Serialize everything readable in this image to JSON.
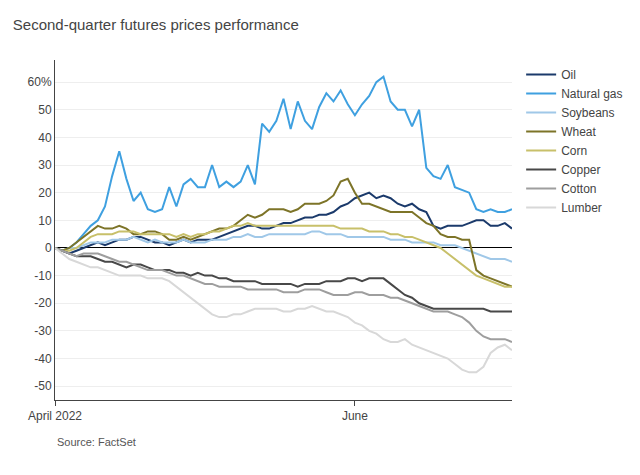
{
  "chart_data": {
    "type": "line",
    "title": "Second-quarter futures prices performance",
    "annotations": [
      "Source: FactSet"
    ],
    "categories": [
      "April 2022",
      null,
      null,
      null,
      null,
      null,
      null,
      null,
      null,
      null,
      null,
      null,
      null,
      null,
      null,
      null,
      null,
      null,
      null,
      null,
      null,
      null,
      null,
      null,
      null,
      null,
      null,
      null,
      null,
      null,
      null,
      null,
      null,
      null,
      null,
      null,
      null,
      null,
      null,
      null,
      null,
      null,
      "June",
      null,
      null,
      null,
      null,
      null,
      null,
      null,
      null,
      null,
      null,
      null,
      null,
      null,
      null,
      null,
      null,
      null,
      null,
      null,
      null,
      null,
      null
    ],
    "series": [
      {
        "name": "Oil",
        "color": "#1b3a6b",
        "values": [
          0,
          -1,
          -2,
          -1,
          0,
          1,
          2,
          1,
          2,
          3,
          3,
          4,
          4,
          3,
          2,
          2,
          1,
          2,
          3,
          2,
          3,
          3,
          3,
          4,
          5,
          6,
          7,
          8,
          8,
          7,
          7,
          8,
          9,
          9,
          10,
          11,
          11,
          12,
          12,
          13,
          15,
          16,
          18,
          19,
          20,
          18,
          19,
          18,
          16,
          15,
          16,
          14,
          13,
          8,
          7,
          8,
          8,
          8,
          9,
          10,
          10,
          8,
          8,
          9,
          7
        ]
      },
      {
        "name": "Natural gas",
        "color": "#3fa0e0",
        "values": [
          0,
          -1,
          0,
          2,
          5,
          8,
          10,
          15,
          26,
          35,
          25,
          17,
          20,
          14,
          13,
          14,
          22,
          15,
          23,
          25,
          22,
          22,
          30,
          22,
          24,
          22,
          24,
          30,
          23,
          45,
          42,
          46,
          54,
          43,
          53,
          46,
          43,
          51,
          56,
          53,
          57,
          52,
          48,
          52,
          55,
          60,
          62,
          53,
          50,
          50,
          44,
          50,
          29,
          26,
          25,
          30,
          22,
          21,
          20,
          14,
          13,
          14,
          13,
          13,
          14
        ]
      },
      {
        "name": "Soybeans",
        "color": "#a0c8e8",
        "values": [
          0,
          -1,
          0,
          0,
          1,
          2,
          2,
          2,
          3,
          3,
          3,
          4,
          3,
          2,
          3,
          2,
          2,
          2,
          3,
          2,
          2,
          2,
          3,
          3,
          3,
          4,
          4,
          5,
          4,
          4,
          5,
          5,
          5,
          5,
          5,
          5,
          6,
          6,
          5,
          5,
          5,
          4,
          4,
          4,
          4,
          4,
          4,
          3,
          3,
          3,
          2,
          2,
          2,
          2,
          1,
          1,
          1,
          0,
          -1,
          -2,
          -3,
          -4,
          -4,
          -4,
          -5
        ]
      },
      {
        "name": "Wheat",
        "color": "#7d7428",
        "values": [
          0,
          -1,
          0,
          2,
          4,
          6,
          8,
          7,
          7,
          8,
          7,
          5,
          5,
          6,
          6,
          5,
          3,
          3,
          4,
          3,
          4,
          5,
          6,
          7,
          7,
          8,
          10,
          12,
          11,
          12,
          14,
          14,
          14,
          13,
          14,
          16,
          16,
          16,
          17,
          19,
          24,
          25,
          20,
          16,
          16,
          15,
          14,
          13,
          13,
          13,
          13,
          11,
          9,
          8,
          5,
          4,
          4,
          3,
          3,
          -8,
          -10,
          -11,
          -12,
          -13,
          -14
        ]
      },
      {
        "name": "Corn",
        "color": "#c8c06a",
        "values": [
          0,
          -1,
          -1,
          0,
          2,
          4,
          5,
          5,
          5,
          6,
          6,
          6,
          5,
          5,
          5,
          5,
          5,
          4,
          5,
          4,
          5,
          5,
          6,
          6,
          7,
          8,
          8,
          9,
          8,
          8,
          8,
          8,
          8,
          8,
          8,
          8,
          8,
          8,
          8,
          8,
          7,
          7,
          7,
          7,
          6,
          6,
          6,
          5,
          5,
          4,
          4,
          3,
          2,
          1,
          0,
          -2,
          -4,
          -6,
          -8,
          -10,
          -11,
          -12,
          -13,
          -14,
          -14
        ]
      },
      {
        "name": "Copper",
        "color": "#484848",
        "values": [
          0,
          -1,
          -2,
          -3,
          -3,
          -3,
          -4,
          -5,
          -5,
          -6,
          -7,
          -6,
          -6,
          -7,
          -8,
          -8,
          -8,
          -9,
          -9,
          -10,
          -9,
          -10,
          -10,
          -11,
          -11,
          -12,
          -12,
          -12,
          -12,
          -13,
          -13,
          -13,
          -13,
          -13,
          -14,
          -13,
          -13,
          -13,
          -12,
          -12,
          -12,
          -11,
          -11,
          -12,
          -11,
          -11,
          -11,
          -13,
          -15,
          -17,
          -18,
          -20,
          -21,
          -22,
          -22,
          -22,
          -22,
          -22,
          -22,
          -22,
          -22,
          -23,
          -23,
          -23,
          -23
        ]
      },
      {
        "name": "Cotton",
        "color": "#9e9e9e",
        "values": [
          0,
          -1,
          -2,
          -3,
          -2,
          -2,
          -2,
          -3,
          -4,
          -5,
          -5,
          -6,
          -7,
          -8,
          -8,
          -8,
          -9,
          -10,
          -10,
          -11,
          -12,
          -13,
          -13,
          -14,
          -14,
          -14,
          -14,
          -15,
          -15,
          -15,
          -15,
          -15,
          -16,
          -16,
          -16,
          -15,
          -15,
          -15,
          -16,
          -17,
          -17,
          -17,
          -16,
          -16,
          -17,
          -17,
          -17,
          -18,
          -18,
          -19,
          -20,
          -21,
          -22,
          -23,
          -23,
          -23,
          -24,
          -25,
          -27,
          -30,
          -32,
          -33,
          -33,
          -33,
          -34
        ]
      },
      {
        "name": "Lumber",
        "color": "#d8d8d8",
        "values": [
          0,
          -2,
          -4,
          -5,
          -6,
          -7,
          -7,
          -8,
          -9,
          -10,
          -10,
          -10,
          -10,
          -11,
          -11,
          -11,
          -12,
          -14,
          -16,
          -18,
          -20,
          -22,
          -24,
          -25,
          -25,
          -24,
          -24,
          -23,
          -22,
          -22,
          -22,
          -22,
          -23,
          -23,
          -22,
          -22,
          -21,
          -22,
          -23,
          -23,
          -24,
          -25,
          -27,
          -28,
          -30,
          -31,
          -33,
          -34,
          -34,
          -33,
          -35,
          -36,
          -37,
          -38,
          -39,
          -40,
          -42,
          -44,
          -45,
          -45,
          -43,
          -38,
          -36,
          -35,
          -37
        ]
      }
    ],
    "ylim": [
      -55,
      68
    ],
    "yticks": [
      -50,
      -40,
      -30,
      -20,
      -10,
      0,
      10,
      20,
      30,
      40,
      50,
      {
        "value": 60,
        "label": "60%"
      }
    ],
    "grid": true,
    "legend": "right"
  }
}
